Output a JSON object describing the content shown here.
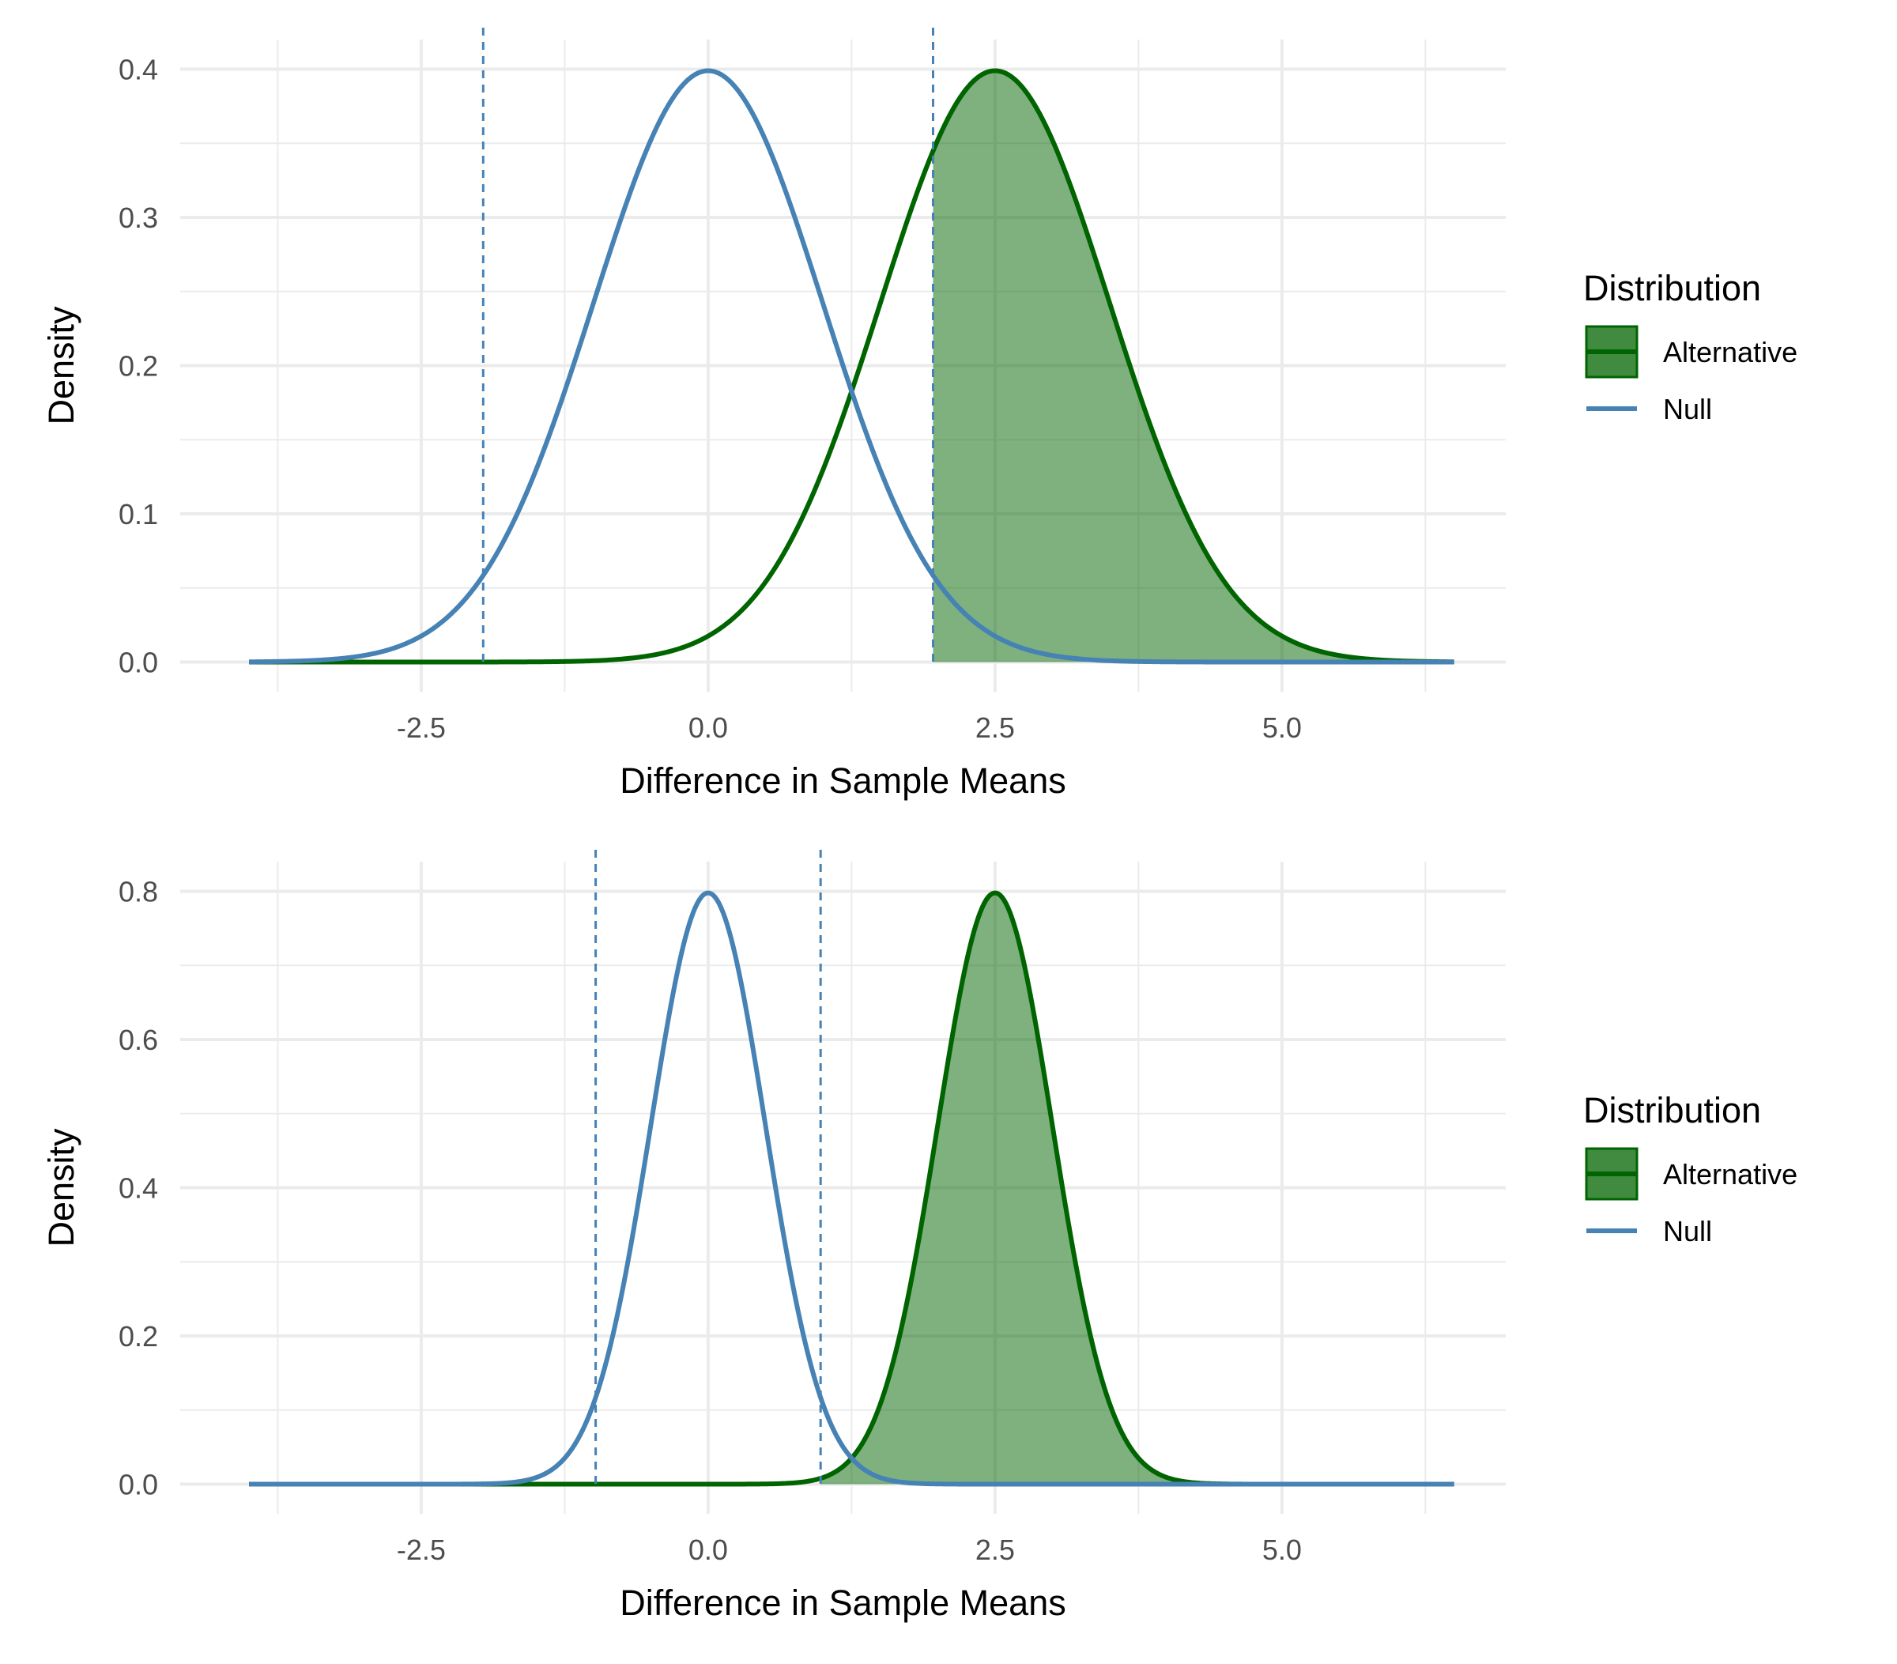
{
  "colors": {
    "null": "#4682B4",
    "alternative": "#006400",
    "fill": "#006400",
    "grid": "#EBEBEB",
    "tick_text": "#4D4D4D"
  },
  "chart_data": [
    {
      "type": "area",
      "title": "",
      "xlabel": "Difference in Sample Means",
      "ylabel": "Density",
      "xlim": [
        -4.6,
        6.95
      ],
      "ylim": [
        -0.02,
        0.42
      ],
      "x_ticks": [
        -2.5,
        0,
        2.5,
        5
      ],
      "x_tick_labels": [
        "-2.5",
        "0.0",
        "2.5",
        "5.0"
      ],
      "y_ticks": [
        0,
        0.1,
        0.2,
        0.3,
        0.4
      ],
      "y_tick_labels": [
        "0.0",
        "0.1",
        "0.2",
        "0.3",
        "0.4"
      ],
      "x_range": [
        -4,
        6.5
      ],
      "series": [
        {
          "name": "Null",
          "distribution": "normal",
          "mean": 0,
          "sd": 1
        },
        {
          "name": "Alternative",
          "distribution": "normal",
          "mean": 2.5,
          "sd": 1,
          "shaded_from": 1.96
        }
      ],
      "critical_values": [
        -1.96,
        1.96
      ],
      "legend": {
        "title": "Distribution",
        "position": "right",
        "entries": [
          "Alternative",
          "Null"
        ]
      },
      "grid": true
    },
    {
      "type": "area",
      "title": "",
      "xlabel": "Difference in Sample Means",
      "ylabel": "Density",
      "xlim": [
        -4.6,
        6.95
      ],
      "ylim": [
        -0.04,
        0.84
      ],
      "x_ticks": [
        -2.5,
        0,
        2.5,
        5
      ],
      "x_tick_labels": [
        "-2.5",
        "0.0",
        "2.5",
        "5.0"
      ],
      "y_ticks": [
        0,
        0.2,
        0.4,
        0.6,
        0.8
      ],
      "y_tick_labels": [
        "0.0",
        "0.2",
        "0.4",
        "0.6",
        "0.8"
      ],
      "x_range": [
        -4,
        6.5
      ],
      "series": [
        {
          "name": "Null",
          "distribution": "normal",
          "mean": 0,
          "sd": 0.5
        },
        {
          "name": "Alternative",
          "distribution": "normal",
          "mean": 2.5,
          "sd": 0.5,
          "shaded_from": 0.98
        }
      ],
      "critical_values": [
        -0.98,
        0.98
      ],
      "legend": {
        "title": "Distribution",
        "position": "right",
        "entries": [
          "Alternative",
          "Null"
        ]
      },
      "grid": true
    }
  ]
}
